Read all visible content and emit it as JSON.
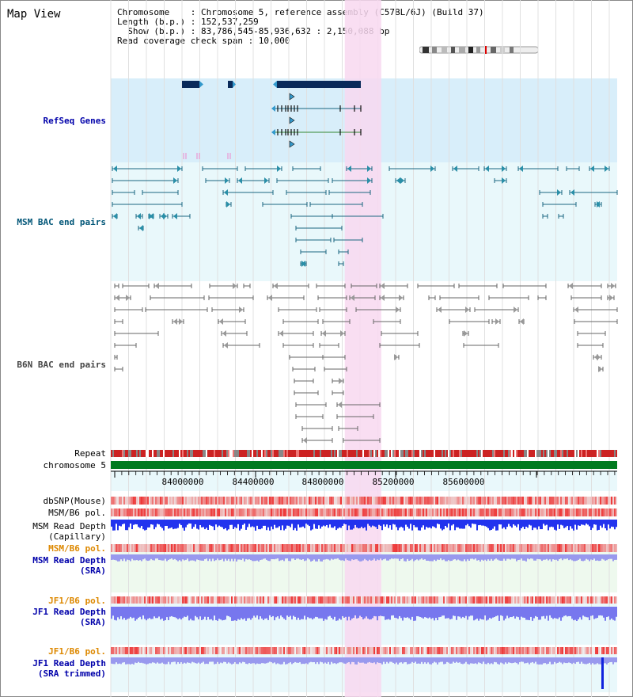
{
  "title": "Map View",
  "info": {
    "chromosome": "Chromosome    : Chromosome 5, reference assembly (C57BL/6J) (Build 37)",
    "length": "Length (b.p.) : 152,537,259",
    "show": "  Show (b.p.) : 83,786,545-85,936,632 : 2,150,088 bp",
    "coverage": "Read coverage check span : 10,000"
  },
  "region": {
    "start": 83786545,
    "end": 85936632
  },
  "highlight": {
    "start": 84780000,
    "end": 84935000,
    "color": "#f8d8f0"
  },
  "axis_ticks": [
    "84000000",
    "84400000",
    "84800000",
    "85200000",
    "85600000"
  ],
  "tracks": {
    "refseq": "RefSeq Genes",
    "msm_bac": "MSM BAC end pairs",
    "b6n_bac": "B6N BAC end pairs",
    "repeat": "Repeat",
    "chromosome": "chromosome 5",
    "dbsnp": "dbSNP(Mouse)",
    "msm_pol": "MSM/B6 pol.",
    "msm_depth_cap": "MSM Read Depth\n(Capillary)",
    "msm_pol_sra": "MSM/B6 pol.",
    "msm_depth_sra": "MSM Read Depth\n(SRA)",
    "jf1_pol": "JF1/B6 pol.",
    "jf1_depth_sra": "JF1 Read Depth\n(SRA)",
    "jf1_pol_trim": "JF1/B6 pol.",
    "jf1_depth_trim": "JF1 Read Depth\n(SRA trimmed)"
  },
  "colors": {
    "refseq_gene": "#0a2a5a",
    "msm_pair": "#1a6680",
    "b6n_pair": "#666666",
    "repeat_a": "#cc2222",
    "repeat_b": "#888888",
    "chromosome_bar": "#007a1f",
    "snp": "#ee4444",
    "depth_dark": "#2233ee",
    "depth_light": "#7777ee",
    "depth_pale": "#9999ee"
  }
}
